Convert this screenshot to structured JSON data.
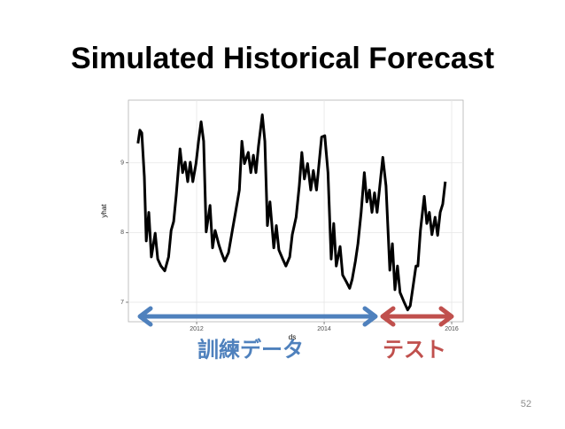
{
  "chart_data": {
    "type": "line",
    "title": "Simulated Historical Forecast",
    "x_label": "ds",
    "y_label": "yhat",
    "x": [
      2011.08,
      2011.11,
      2011.14,
      2011.18,
      2011.21,
      2011.25,
      2011.29,
      2011.35,
      2011.39,
      2011.44,
      2011.5,
      2011.56,
      2011.6,
      2011.64,
      2011.68,
      2011.74,
      2011.78,
      2011.82,
      2011.86,
      2011.9,
      2011.94,
      2011.99,
      2012.03,
      2012.07,
      2012.11,
      2012.15,
      2012.21,
      2012.25,
      2012.29,
      2012.35,
      2012.39,
      2012.44,
      2012.5,
      2012.56,
      2012.61,
      2012.67,
      2012.71,
      2012.75,
      2012.81,
      2012.85,
      2012.89,
      2012.93,
      2012.97,
      2013.03,
      2013.07,
      2013.11,
      2013.15,
      2013.21,
      2013.25,
      2013.29,
      2013.35,
      2013.4,
      2013.46,
      2013.5,
      2013.56,
      2013.61,
      2013.65,
      2013.69,
      2013.74,
      2013.79,
      2013.83,
      2013.88,
      2013.92,
      2013.96,
      2014.01,
      2014.06,
      2014.11,
      2014.15,
      2014.19,
      2014.25,
      2014.29,
      2014.35,
      2014.4,
      2014.44,
      2014.49,
      2014.53,
      2014.58,
      2014.63,
      2014.67,
      2014.71,
      2014.75,
      2014.79,
      2014.83,
      2014.88,
      2014.92,
      2014.97,
      2015.03,
      2015.07,
      2015.11,
      2015.15,
      2015.19,
      2015.25,
      2015.31,
      2015.35,
      2015.39,
      2015.44,
      2015.47,
      2015.51,
      2015.57,
      2015.61,
      2015.65,
      2015.69,
      2015.74,
      2015.78,
      2015.82,
      2015.86,
      2015.9
    ],
    "series": [
      {
        "name": "yhat",
        "color": "#000000",
        "values": [
          9.28,
          9.47,
          9.43,
          8.8,
          7.88,
          8.29,
          7.65,
          7.99,
          7.62,
          7.52,
          7.45,
          7.65,
          8.03,
          8.16,
          8.54,
          9.2,
          8.86,
          9.01,
          8.73,
          9.01,
          8.73,
          8.99,
          9.31,
          9.59,
          9.31,
          8.01,
          8.39,
          7.78,
          8.03,
          7.82,
          7.71,
          7.59,
          7.71,
          8.03,
          8.29,
          8.61,
          9.31,
          8.99,
          9.15,
          8.86,
          9.11,
          8.86,
          9.24,
          9.69,
          9.31,
          8.1,
          8.44,
          7.78,
          8.1,
          7.75,
          7.62,
          7.52,
          7.65,
          7.97,
          8.22,
          8.67,
          9.15,
          8.77,
          8.99,
          8.61,
          8.89,
          8.61,
          8.99,
          9.37,
          9.39,
          8.86,
          7.62,
          8.13,
          7.52,
          7.8,
          7.39,
          7.29,
          7.2,
          7.33,
          7.59,
          7.84,
          8.29,
          8.86,
          8.44,
          8.61,
          8.29,
          8.57,
          8.29,
          8.73,
          9.08,
          8.67,
          7.46,
          7.84,
          7.18,
          7.52,
          7.14,
          7.01,
          6.89,
          6.95,
          7.2,
          7.52,
          7.52,
          8.03,
          8.52,
          8.13,
          8.29,
          7.97,
          8.22,
          7.96,
          8.29,
          8.41,
          8.73
        ]
      }
    ],
    "xlim": [
      2010.93,
      2016.18
    ],
    "ylim": [
      6.72,
      9.9
    ],
    "xticks": [
      2012,
      2014,
      2016
    ],
    "yticks": [
      7,
      8,
      9
    ],
    "grid": true,
    "annotations": [
      {
        "text": "訓練データ",
        "color": "#4f81bd"
      },
      {
        "text": "テスト",
        "color": "#c0504d"
      }
    ]
  },
  "page_number": "52"
}
